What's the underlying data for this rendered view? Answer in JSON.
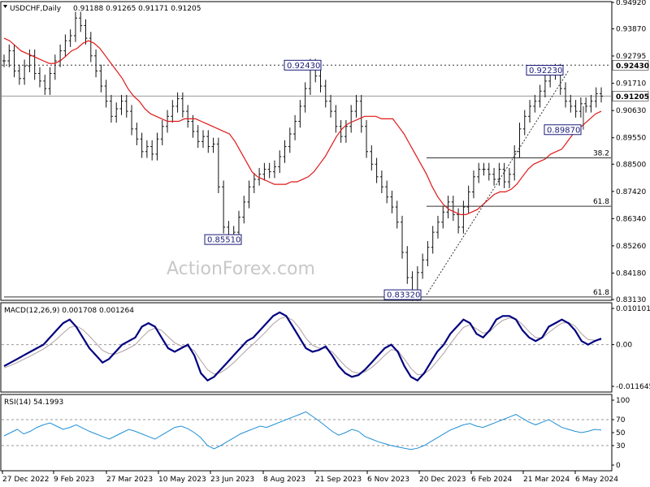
{
  "chart_data": [
    {
      "panel": "price",
      "type": "line",
      "title": "USDCHF,Daily",
      "ohlc_text": "0.91188 0.91265 0.91171 0.91205",
      "watermark": "ActionForex.com",
      "x_tick_labels": [
        "27 Dec 2022",
        "9 Feb 2023",
        "27 Mar 2023",
        "10 May 2023",
        "23 Jun 2023",
        "8 Aug 2023",
        "21 Sep 2023",
        "6 Nov 2023",
        "20 Dec 2023",
        "6 Feb 2024",
        "21 Mar 2024",
        "6 May 2024"
      ],
      "y_tick_labels": [
        "0.94920",
        "0.93870",
        "0.92795",
        "0.91710",
        "0.90630",
        "0.89550",
        "0.88500",
        "0.87420",
        "0.86340",
        "0.85260",
        "0.84180",
        "0.83130"
      ],
      "ylim": [
        0.8313,
        0.9492
      ],
      "series": [
        {
          "name": "",
          "color": "#111111",
          "style": "bars",
          "values": [
            0.926,
            0.93,
            0.922,
            0.919,
            0.924,
            0.928,
            0.921,
            0.918,
            0.915,
            0.921,
            0.926,
            0.93,
            0.934,
            0.936,
            0.943,
            0.94,
            0.935,
            0.928,
            0.922,
            0.916,
            0.91,
            0.904,
            0.907,
            0.91,
            0.906,
            0.899,
            0.895,
            0.89,
            0.892,
            0.889,
            0.895,
            0.9,
            0.904,
            0.908,
            0.911,
            0.906,
            0.902,
            0.898,
            0.894,
            0.896,
            0.892,
            0.893,
            0.876,
            0.86,
            0.856,
            0.858,
            0.864,
            0.87,
            0.876,
            0.879,
            0.881,
            0.883,
            0.882,
            0.884,
            0.888,
            0.892,
            0.897,
            0.902,
            0.908,
            0.915,
            0.9243,
            0.92,
            0.916,
            0.91,
            0.906,
            0.9,
            0.896,
            0.9,
            0.906,
            0.91,
            0.9,
            0.89,
            0.885,
            0.88,
            0.876,
            0.872,
            0.868,
            0.862,
            0.85,
            0.84,
            0.8332,
            0.842,
            0.847,
            0.852,
            0.858,
            0.862,
            0.866,
            0.87,
            0.865,
            0.86,
            0.868,
            0.874,
            0.88,
            0.883,
            0.883,
            0.881,
            0.879,
            0.883,
            0.878,
            0.881,
            0.89,
            0.899,
            0.904,
            0.908,
            0.91,
            0.914,
            0.918,
            0.921,
            0.9223,
            0.915,
            0.91,
            0.908,
            0.906,
            0.909,
            0.908,
            0.91,
            0.913,
            0.912
          ]
        },
        {
          "name": "",
          "color": "#e01818",
          "style": "line",
          "values": [
            0.935,
            0.934,
            0.932,
            0.93,
            0.929,
            0.928,
            0.927,
            0.926,
            0.925,
            0.925,
            0.926,
            0.928,
            0.93,
            0.931,
            0.933,
            0.934,
            0.933,
            0.931,
            0.928,
            0.925,
            0.922,
            0.919,
            0.915,
            0.912,
            0.91,
            0.907,
            0.905,
            0.904,
            0.903,
            0.902,
            0.902,
            0.902,
            0.903,
            0.903,
            0.903,
            0.902,
            0.901,
            0.9,
            0.899,
            0.898,
            0.897,
            0.894,
            0.89,
            0.886,
            0.882,
            0.88,
            0.879,
            0.878,
            0.877,
            0.877,
            0.877,
            0.878,
            0.878,
            0.879,
            0.88,
            0.882,
            0.885,
            0.888,
            0.892,
            0.896,
            0.899,
            0.901,
            0.902,
            0.903,
            0.904,
            0.904,
            0.904,
            0.903,
            0.903,
            0.903,
            0.9,
            0.897,
            0.893,
            0.889,
            0.885,
            0.881,
            0.876,
            0.872,
            0.869,
            0.867,
            0.866,
            0.865,
            0.865,
            0.866,
            0.867,
            0.869,
            0.871,
            0.873,
            0.874,
            0.874,
            0.875,
            0.877,
            0.88,
            0.883,
            0.885,
            0.886,
            0.887,
            0.889,
            0.89,
            0.891,
            0.894,
            0.897,
            0.899,
            0.901,
            0.903,
            0.905,
            0.906
          ]
        }
      ],
      "price_tag": "0.91205",
      "level_tag": "0.92430",
      "callouts": [
        {
          "text": "0.92430",
          "value": 0.9243
        },
        {
          "text": "0.92230",
          "value": 0.9223
        },
        {
          "text": "0.89870",
          "value": 0.8987
        },
        {
          "text": "0.85510",
          "value": 0.8551
        },
        {
          "text": "0.83320",
          "value": 0.8332
        }
      ],
      "fib_levels": [
        {
          "label": "38.2",
          "value": 0.8875
        },
        {
          "label": "61.8",
          "value": 0.8683
        },
        {
          "label": "61.8",
          "value": 0.8323
        }
      ]
    },
    {
      "panel": "macd",
      "type": "line",
      "title": "MACD(12,26,9) 0.001708 0.001264",
      "y_tick_labels": [
        "0.010101",
        "0.00",
        "-0.011645"
      ],
      "ylim": [
        -0.011645,
        0.010101
      ],
      "series": [
        {
          "name": "",
          "color": "#000080",
          "values": [
            -0.006,
            -0.005,
            -0.004,
            -0.003,
            -0.002,
            -0.001,
            0.0,
            0.002,
            0.004,
            0.006,
            0.007,
            0.005,
            0.002,
            -0.001,
            -0.003,
            -0.005,
            -0.004,
            -0.002,
            0.0,
            0.001,
            0.002,
            0.005,
            0.006,
            0.005,
            0.002,
            -0.001,
            -0.002,
            -0.001,
            0.0,
            -0.003,
            -0.008,
            -0.01,
            -0.009,
            -0.007,
            -0.005,
            -0.003,
            -0.001,
            0.001,
            0.002,
            0.004,
            0.006,
            0.008,
            0.009,
            0.008,
            0.005,
            0.002,
            -0.001,
            -0.002,
            -0.0015,
            -0.0005,
            -0.003,
            -0.006,
            -0.008,
            -0.009,
            -0.0085,
            -0.007,
            -0.005,
            -0.003,
            -0.001,
            0.0,
            -0.002,
            -0.006,
            -0.009,
            -0.01,
            -0.008,
            -0.005,
            -0.002,
            0.0,
            0.003,
            0.005,
            0.007,
            0.006,
            0.003,
            0.002,
            0.004,
            0.007,
            0.008,
            0.008,
            0.007,
            0.004,
            0.002,
            0.001,
            0.002,
            0.005,
            0.006,
            0.007,
            0.006,
            0.004,
            0.001,
            0.0,
            0.001,
            0.0017
          ]
        },
        {
          "name": "",
          "color": "#b0a0a0",
          "values": [
            -0.0065,
            -0.0058,
            -0.005,
            -0.0041,
            -0.0032,
            -0.0022,
            -0.0012,
            0.0,
            0.0015,
            0.0032,
            0.0048,
            0.0052,
            0.0042,
            0.0024,
            0.0004,
            -0.0016,
            -0.0025,
            -0.0026,
            -0.0019,
            -0.001,
            0.0,
            0.002,
            0.0038,
            0.0046,
            0.004,
            0.0022,
            0.0005,
            -0.0004,
            -0.0006,
            -0.0017,
            -0.0045,
            -0.007,
            -0.0082,
            -0.0078,
            -0.0066,
            -0.005,
            -0.0032,
            -0.0014,
            0.0002,
            0.002,
            0.0038,
            0.0058,
            0.0072,
            0.0078,
            0.0068,
            0.0046,
            0.0018,
            -0.0002,
            -0.001,
            -0.001,
            -0.002,
            -0.004,
            -0.006,
            -0.0075,
            -0.008,
            -0.0076,
            -0.0064,
            -0.0048,
            -0.003,
            -0.0014,
            -0.0016,
            -0.004,
            -0.0066,
            -0.0084,
            -0.0082,
            -0.0068,
            -0.0046,
            -0.0024,
            0.0002,
            0.0026,
            0.0048,
            0.0056,
            0.0044,
            0.0032,
            0.0036,
            0.0054,
            0.0068,
            0.0074,
            0.0072,
            0.0056,
            0.0036,
            0.002,
            0.0018,
            0.0034,
            0.0048,
            0.006,
            0.0062,
            0.0052,
            0.003,
            0.0014,
            0.0012,
            0.0013
          ]
        }
      ]
    },
    {
      "panel": "rsi",
      "type": "line",
      "title": "RSI(14) 54.1993",
      "y_tick_labels": [
        "100",
        "70",
        "50",
        "30",
        "0"
      ],
      "ylim": [
        0,
        100
      ],
      "series": [
        {
          "name": "",
          "color": "#1f8fd6",
          "values": [
            45,
            50,
            55,
            48,
            52,
            58,
            62,
            65,
            60,
            55,
            58,
            62,
            57,
            52,
            48,
            44,
            40,
            45,
            50,
            55,
            52,
            48,
            44,
            40,
            46,
            52,
            58,
            60,
            56,
            50,
            42,
            30,
            25,
            30,
            36,
            42,
            48,
            52,
            56,
            60,
            58,
            62,
            66,
            70,
            74,
            78,
            82,
            75,
            68,
            60,
            52,
            46,
            50,
            55,
            52,
            44,
            40,
            36,
            33,
            30,
            28,
            26,
            24,
            26,
            30,
            36,
            42,
            48,
            54,
            58,
            62,
            64,
            60,
            58,
            62,
            66,
            70,
            74,
            78,
            72,
            66,
            62,
            66,
            70,
            64,
            58,
            55,
            52,
            50,
            52,
            55,
            54
          ]
        }
      ]
    }
  ]
}
